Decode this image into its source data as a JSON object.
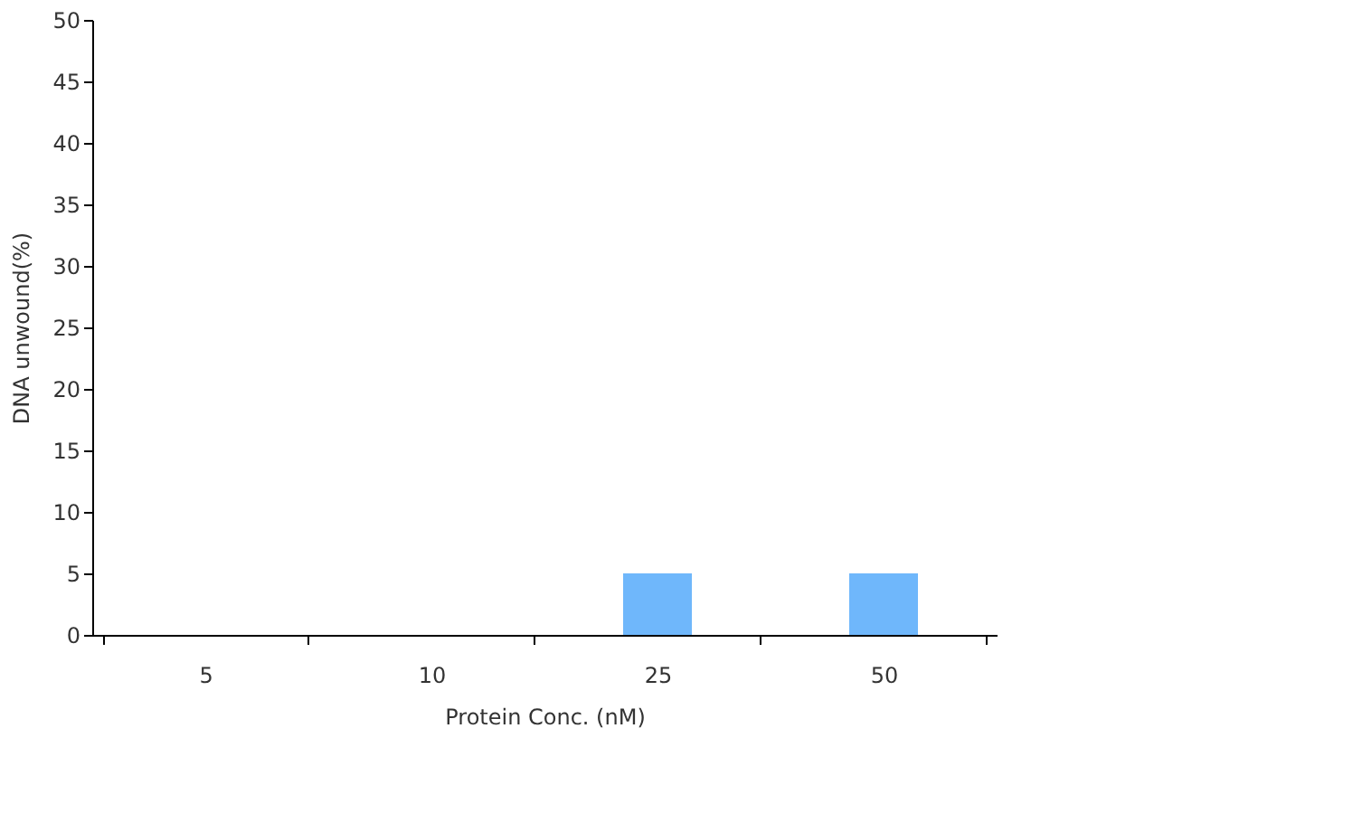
{
  "chart_data": {
    "type": "bar",
    "xlabel": "Protein Conc. (nM)",
    "ylabel": "DNA unwound(%)",
    "categories": [
      "5",
      "10",
      "25",
      "50"
    ],
    "values": [
      0,
      0,
      5,
      5
    ],
    "color": "#6fb7fb",
    "ylim": [
      0,
      50
    ],
    "yticks": [
      0,
      5,
      10,
      15,
      20,
      25,
      30,
      35,
      40,
      45,
      50
    ],
    "grid": false
  }
}
